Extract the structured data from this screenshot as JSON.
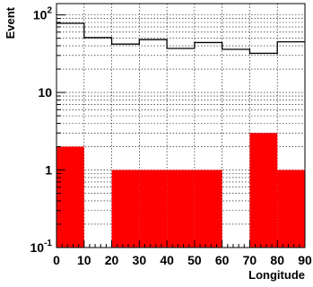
{
  "chart_data": {
    "type": "bar",
    "xlabel": "Longitude",
    "ylabel": "Event",
    "xlim": [
      0,
      90
    ],
    "ylim": [
      0.1,
      140
    ],
    "yscale": "log",
    "grid": true,
    "x_ticks": [
      "0",
      "10",
      "20",
      "30",
      "40",
      "50",
      "60",
      "70",
      "80",
      "90"
    ],
    "y_ticks": [
      {
        "value": 0.1,
        "base": "10",
        "exp": "-1"
      },
      {
        "value": 1,
        "text": "1"
      },
      {
        "value": 10,
        "text": "10"
      },
      {
        "value": 100,
        "base": "10",
        "exp": "2"
      }
    ],
    "bin_edges": [
      0,
      10,
      20,
      30,
      40,
      50,
      60,
      70,
      80,
      90
    ],
    "series": [
      {
        "style": "outline",
        "color": "#000000",
        "values": [
          78,
          51,
          42,
          48,
          37,
          44,
          36,
          32,
          45
        ]
      },
      {
        "style": "filled",
        "color": "#ff0000",
        "values": [
          2,
          0,
          1,
          1,
          1,
          1,
          0,
          3,
          1
        ]
      }
    ]
  }
}
